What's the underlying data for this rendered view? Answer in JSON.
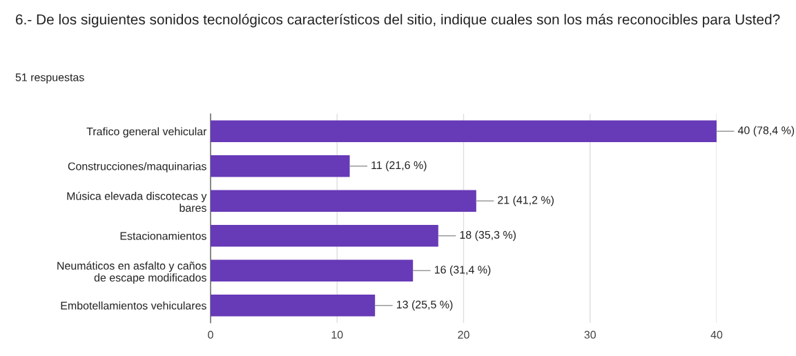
{
  "chart_data": {
    "type": "bar",
    "orientation": "horizontal",
    "title": "6.- De los siguientes sonidos tecnológicos característicos del sitio, indique cuales son los más reconocibles para Usted?",
    "subtitle": "51 respuestas",
    "categories": [
      "Trafico general vehicular",
      "Construcciones/maquinarias",
      "Música elevada discotecas y bares",
      "Estacionamientos",
      "Neumáticos en asfalto y caños de escape modificados",
      "Embotellamientos vehiculares"
    ],
    "values": [
      40,
      11,
      21,
      18,
      16,
      13
    ],
    "value_labels": [
      "40 (78,4 %)",
      "11 (21,6 %)",
      "21 (41,2 %)",
      "18 (35,3 %)",
      "16 (31,4 %)",
      "13 (25,5 %)"
    ],
    "color": "#673ab7",
    "xlim": [
      0,
      40
    ],
    "xticks": [
      0,
      10,
      20,
      30,
      40
    ],
    "grid": "x",
    "legend": false
  }
}
